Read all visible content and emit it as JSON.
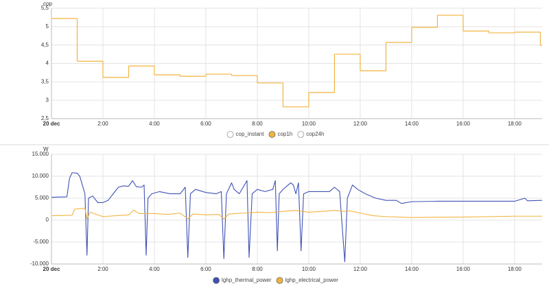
{
  "chart_data": [
    {
      "type": "step",
      "y_label": "cop",
      "xlim": [
        0,
        19.07
      ],
      "xticks": [
        {
          "value": 0,
          "label": "20 dec"
        },
        {
          "value": 2,
          "label": "2:00"
        },
        {
          "value": 4,
          "label": "4:00"
        },
        {
          "value": 6,
          "label": "6:00"
        },
        {
          "value": 8,
          "label": "8:00"
        },
        {
          "value": 10,
          "label": "10:00"
        },
        {
          "value": 12,
          "label": "12:00"
        },
        {
          "value": 14,
          "label": "14:00"
        },
        {
          "value": 16,
          "label": "16:00"
        },
        {
          "value": 18,
          "label": "18:00"
        }
      ],
      "ylim": [
        2.5,
        5.5
      ],
      "yticks": [
        {
          "value": 2.5,
          "label": "2,5"
        },
        3,
        {
          "value": 3.5,
          "label": "3,5"
        },
        4,
        {
          "value": 4.5,
          "label": "4,5"
        },
        5,
        {
          "value": 5.5,
          "label": "5,5"
        }
      ],
      "grid": true,
      "series": [
        {
          "name": "cop_instant",
          "color": "#999999",
          "hidden": true
        },
        {
          "name": "cop1h",
          "color": "#f2b33d",
          "x": [
            0,
            1,
            2,
            3,
            4,
            5,
            6,
            7,
            8,
            9,
            10,
            11,
            12,
            13,
            14,
            15,
            16,
            17,
            18,
            19
          ],
          "values": [
            5.22,
            4.06,
            3.62,
            3.93,
            3.69,
            3.65,
            3.71,
            3.67,
            3.47,
            2.82,
            3.21,
            4.25,
            3.8,
            4.57,
            4.98,
            5.31,
            4.88,
            4.83,
            4.85,
            4.49
          ]
        },
        {
          "name": "cop24h",
          "color": "#999999",
          "hidden": true
        }
      ]
    },
    {
      "type": "line",
      "y_label": "W",
      "xlim": [
        0,
        19.07
      ],
      "xticks": [
        {
          "value": 0,
          "label": "20 dec"
        },
        {
          "value": 2,
          "label": "2:00"
        },
        {
          "value": 4,
          "label": "4:00"
        },
        {
          "value": 6,
          "label": "6:00"
        },
        {
          "value": 8,
          "label": "8:00"
        },
        {
          "value": 10,
          "label": "10:00"
        },
        {
          "value": 12,
          "label": "12:00"
        },
        {
          "value": 14,
          "label": "14:00"
        },
        {
          "value": 16,
          "label": "16:00"
        },
        {
          "value": 18,
          "label": "18:00"
        }
      ],
      "ylim": [
        -10000,
        15000
      ],
      "yticks": [
        {
          "value": -10000,
          "label": "-10.000"
        },
        {
          "value": -5000,
          "label": "-5.000"
        },
        0,
        {
          "value": 5000,
          "label": "5.000"
        },
        {
          "value": 10000,
          "label": "10.000"
        },
        {
          "value": 15000,
          "label": "15.000"
        }
      ],
      "grid": true,
      "series": [
        {
          "name": "lghp_thermal_power",
          "color": "#3f51b5",
          "x": [
            0,
            0.6,
            0.7,
            0.8,
            1.0,
            1.1,
            1.2,
            1.3,
            1.38,
            1.44,
            1.6,
            1.8,
            2.0,
            2.2,
            2.4,
            2.6,
            2.8,
            3.0,
            3.15,
            3.3,
            3.5,
            3.6,
            3.68,
            3.75,
            3.9,
            4.2,
            4.6,
            5.0,
            5.2,
            5.3,
            5.4,
            5.6,
            6.0,
            6.4,
            6.6,
            6.7,
            6.8,
            7.0,
            7.1,
            7.3,
            7.5,
            7.6,
            7.68,
            7.8,
            8.0,
            8.3,
            8.6,
            8.7,
            8.78,
            8.85,
            9.0,
            9.3,
            9.4,
            9.5,
            9.6,
            9.7,
            9.8,
            10.0,
            10.4,
            10.8,
            11.0,
            11.2,
            11.4,
            11.5,
            11.7,
            11.9,
            12.2,
            12.6,
            13.0,
            13.4,
            13.6,
            14.0,
            15.0,
            16.0,
            17.0,
            18.0,
            18.4,
            18.5,
            19.07
          ],
          "values": [
            5200,
            5300,
            9500,
            10800,
            10700,
            10000,
            8000,
            6000,
            -8000,
            5000,
            5500,
            4000,
            4000,
            4500,
            6000,
            7500,
            7800,
            7700,
            9000,
            7600,
            7500,
            8000,
            -8000,
            5000,
            6000,
            6500,
            6000,
            6000,
            7500,
            -8500,
            6000,
            7000,
            6300,
            6000,
            6500,
            -8800,
            6000,
            8500,
            7000,
            6000,
            8000,
            9000,
            -8500,
            6000,
            7000,
            6500,
            7000,
            9000,
            -7000,
            6000,
            7000,
            8500,
            8000,
            6000,
            8500,
            -7000,
            6000,
            6500,
            6500,
            6500,
            7500,
            6500,
            -9500,
            5000,
            8000,
            7000,
            6000,
            5000,
            4500,
            4500,
            3800,
            4200,
            4300,
            4300,
            4300,
            4300,
            5000,
            4400,
            4500
          ]
        },
        {
          "name": "lghp_electrical_power",
          "color": "#f2b33d",
          "x": [
            0,
            0.8,
            0.9,
            1.3,
            1.38,
            1.5,
            2.0,
            2.5,
            3.0,
            3.2,
            3.4,
            4.0,
            4.5,
            5.0,
            5.3,
            5.5,
            6.0,
            6.5,
            6.7,
            6.9,
            7.5,
            8.0,
            8.5,
            9.0,
            9.5,
            10.0,
            10.5,
            11.0,
            11.4,
            11.6,
            12.0,
            12.5,
            13.0,
            14.0,
            16.0,
            18.0,
            19.07
          ],
          "values": [
            1000,
            1100,
            2500,
            2700,
            300,
            1800,
            800,
            1000,
            1200,
            2300,
            1500,
            1500,
            1300,
            1600,
            300,
            1400,
            1200,
            1300,
            300,
            1400,
            1600,
            1800,
            1700,
            2000,
            2200,
            1800,
            2000,
            2200,
            2000,
            2100,
            1600,
            1000,
            800,
            600,
            700,
            900,
            900
          ]
        }
      ]
    }
  ]
}
